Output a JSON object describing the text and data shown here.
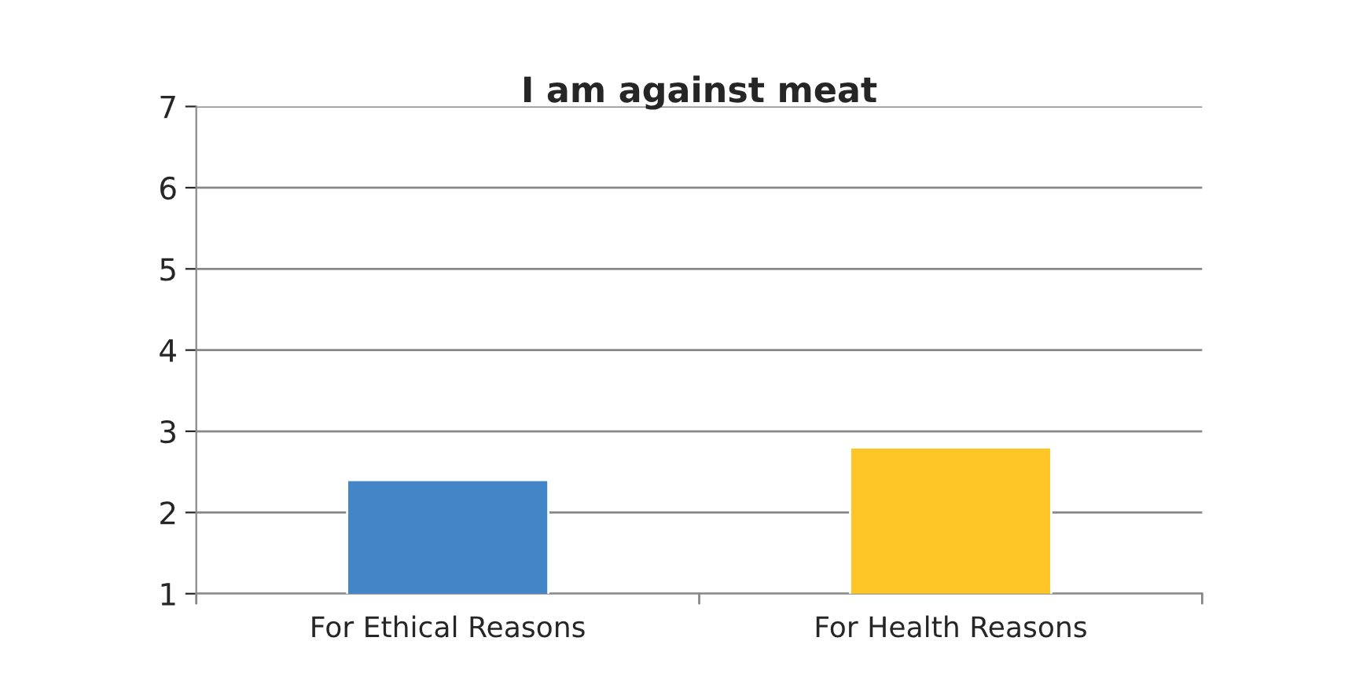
{
  "chart_data": {
    "type": "bar",
    "title": "I am against meat",
    "categories": [
      "For Ethical Reasons",
      "For Health Reasons"
    ],
    "values": [
      2.4,
      2.8
    ],
    "colors": [
      "#4286c7",
      "#ffc627"
    ],
    "ylim": [
      1,
      7
    ],
    "yticks": [
      1,
      2,
      3,
      4,
      5,
      6,
      7
    ],
    "grid": "y",
    "legend": false
  }
}
